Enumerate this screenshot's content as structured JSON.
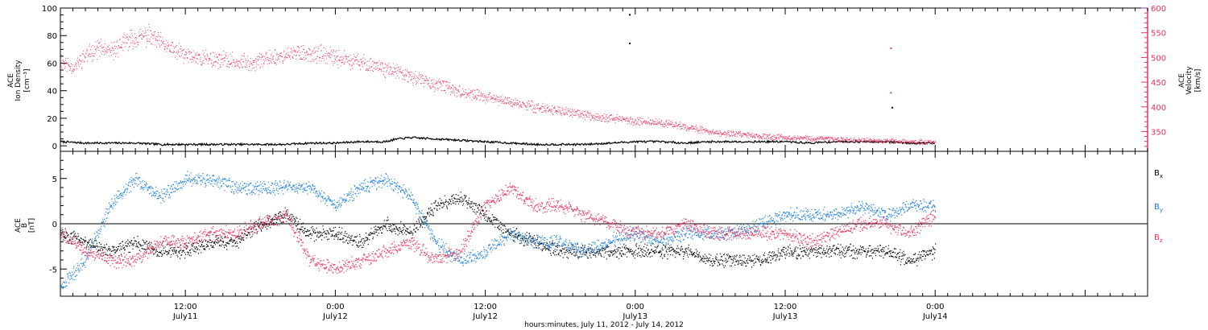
{
  "colors": {
    "density": "#000000",
    "velocity": "#e8325f",
    "bx": "#000000",
    "by": "#1a7fe0",
    "bz": "#e8325f",
    "axis": "#000000",
    "right_axis": "#e8325f",
    "right_axis_top": "#8a3fd0"
  },
  "x_axis": {
    "title": "hours:minutes, July 11, 2012 - July 14, 2012",
    "range_hours": [
      2.0,
      89.0
    ],
    "ticks": [
      {
        "t": 12,
        "time": "12:00",
        "date": "July11"
      },
      {
        "t": 24,
        "time": "0:00",
        "date": "July12"
      },
      {
        "t": 36,
        "time": "12:00",
        "date": "July12"
      },
      {
        "t": 48,
        "time": "0:00",
        "date": "July13"
      },
      {
        "t": 60,
        "time": "12:00",
        "date": "July13"
      },
      {
        "t": 72,
        "time": "0:00",
        "date": "July14"
      }
    ]
  },
  "chart_data": [
    {
      "type": "scatter",
      "panel": "top",
      "ylabel_left": [
        "ACE",
        "Ion Density",
        "[cm⁻³]"
      ],
      "ylabel_right": [
        "ACE",
        "Velocity",
        "[km/s]"
      ],
      "ylim_left": [
        -4,
        100
      ],
      "yticks_left": [
        "0",
        "20",
        "40",
        "60",
        "80",
        "100"
      ],
      "ylim_right": [
        310,
        600
      ],
      "yticks_right": [
        "350",
        "400",
        "450",
        "500",
        "550",
        "600"
      ],
      "series": [
        {
          "key": "density",
          "axis": "left",
          "x": [
            2,
            4,
            6,
            8,
            10,
            12,
            14,
            16,
            18,
            20,
            22,
            24,
            26,
            28,
            29,
            30,
            32,
            34,
            36,
            38,
            40,
            42,
            44,
            46,
            48,
            50,
            52,
            54,
            56,
            58,
            60,
            62,
            64,
            66,
            68,
            70,
            72
          ],
          "y": [
            3,
            2,
            2,
            2,
            1,
            1,
            1,
            1,
            1,
            1,
            2,
            2,
            3,
            3,
            5,
            6,
            5,
            4,
            3,
            2,
            1,
            1,
            1,
            2,
            3,
            3,
            2,
            3,
            3,
            3,
            3,
            2,
            3,
            3,
            3,
            2,
            2
          ]
        },
        {
          "key": "velocity",
          "axis": "right",
          "x": [
            2,
            3,
            4,
            5,
            6,
            7,
            8,
            9,
            10,
            11,
            12,
            13,
            14,
            15,
            16,
            17,
            18,
            19,
            20,
            21,
            22,
            23,
            24,
            25,
            26,
            27,
            28,
            29,
            30,
            31,
            32,
            33,
            34,
            35,
            36,
            37,
            38,
            39,
            40,
            41,
            42,
            43,
            44,
            45,
            46,
            47,
            48,
            49,
            50,
            51,
            52,
            53,
            54,
            55,
            56,
            57,
            58,
            59,
            60,
            61,
            62,
            63,
            64,
            65,
            66,
            67,
            68,
            69,
            70,
            71,
            72
          ],
          "y": [
            495,
            480,
            505,
            520,
            510,
            530,
            540,
            545,
            530,
            515,
            505,
            500,
            498,
            495,
            492,
            490,
            495,
            500,
            505,
            510,
            508,
            505,
            500,
            495,
            490,
            485,
            478,
            470,
            462,
            455,
            445,
            440,
            430,
            425,
            420,
            415,
            410,
            405,
            400,
            396,
            392,
            388,
            384,
            380,
            378,
            375,
            372,
            370,
            368,
            365,
            360,
            355,
            350,
            347,
            345,
            343,
            341,
            340,
            339,
            338,
            337,
            336,
            335,
            334,
            333,
            332,
            331,
            331,
            330,
            330,
            330
          ]
        }
      ],
      "outliers": [
        {
          "axis": "right",
          "x": 47.5,
          "y": 588,
          "color": "density"
        },
        {
          "axis": "right",
          "x": 47.5,
          "y": 530,
          "color": "density"
        },
        {
          "axis": "right",
          "x": 68.4,
          "y": 520,
          "color": "velocity"
        },
        {
          "axis": "right",
          "x": 68.4,
          "y": 430,
          "color": "velocity"
        },
        {
          "axis": "right",
          "x": 68.5,
          "y": 400,
          "color": "density"
        }
      ]
    },
    {
      "type": "scatter",
      "panel": "bottom",
      "ylabel_left": [
        "ACE",
        "B",
        "[nT]"
      ],
      "ylim": [
        -8,
        8
      ],
      "yticks": [
        "5",
        "0",
        "-5"
      ],
      "zero_line": true,
      "legend": [
        {
          "key": "bx",
          "label": "B",
          "sub": "x"
        },
        {
          "key": "by",
          "label": "B",
          "sub": "y"
        },
        {
          "key": "bz",
          "label": "B",
          "sub": "z"
        }
      ],
      "series": [
        {
          "key": "bx",
          "x": [
            2,
            4,
            6,
            8,
            10,
            12,
            14,
            16,
            18,
            20,
            22,
            24,
            26,
            28,
            30,
            32,
            34,
            36,
            38,
            40,
            42,
            44,
            46,
            48,
            50,
            52,
            54,
            56,
            58,
            60,
            62,
            64,
            66,
            68,
            70,
            72
          ],
          "y": [
            -1,
            -2,
            -3,
            -2,
            -3,
            -3,
            -2,
            -2,
            0,
            1,
            -1,
            -1,
            -2,
            0,
            -1,
            2,
            3,
            1,
            -1,
            -2,
            -3,
            -3,
            -3,
            -3,
            -3,
            -3,
            -4,
            -4,
            -4,
            -3,
            -3,
            -3,
            -3,
            -3,
            -4,
            -3
          ]
        },
        {
          "key": "by",
          "x": [
            2,
            4,
            6,
            8,
            10,
            12,
            14,
            16,
            18,
            20,
            22,
            24,
            26,
            28,
            30,
            32,
            34,
            36,
            38,
            40,
            42,
            44,
            46,
            48,
            50,
            52,
            54,
            56,
            58,
            60,
            62,
            64,
            66,
            68,
            70,
            72
          ],
          "y": [
            -7,
            -4,
            2,
            5,
            3,
            5,
            5,
            4,
            4,
            4,
            4,
            2,
            4,
            5,
            3,
            -2,
            -4,
            -3,
            -1,
            -2,
            -2,
            -3,
            -2,
            -1,
            -2,
            -1,
            -1,
            -1,
            0,
            1,
            1,
            1,
            2,
            1,
            2,
            2
          ]
        },
        {
          "key": "bz",
          "x": [
            2,
            4,
            6,
            8,
            10,
            12,
            14,
            16,
            18,
            20,
            22,
            24,
            26,
            28,
            30,
            32,
            34,
            36,
            38,
            40,
            42,
            44,
            46,
            48,
            50,
            52,
            54,
            56,
            58,
            60,
            62,
            64,
            66,
            68,
            70,
            72
          ],
          "y": [
            -1,
            -3,
            -4,
            -4,
            -2,
            -2,
            -1,
            -1,
            0,
            1,
            -4,
            -5,
            -4,
            -3,
            -2,
            -4,
            -3,
            2,
            4,
            2,
            2,
            1,
            0,
            -1,
            -1,
            0,
            -1,
            -1,
            -1,
            -1,
            -2,
            -1,
            0,
            0,
            -1,
            1
          ]
        }
      ]
    }
  ]
}
